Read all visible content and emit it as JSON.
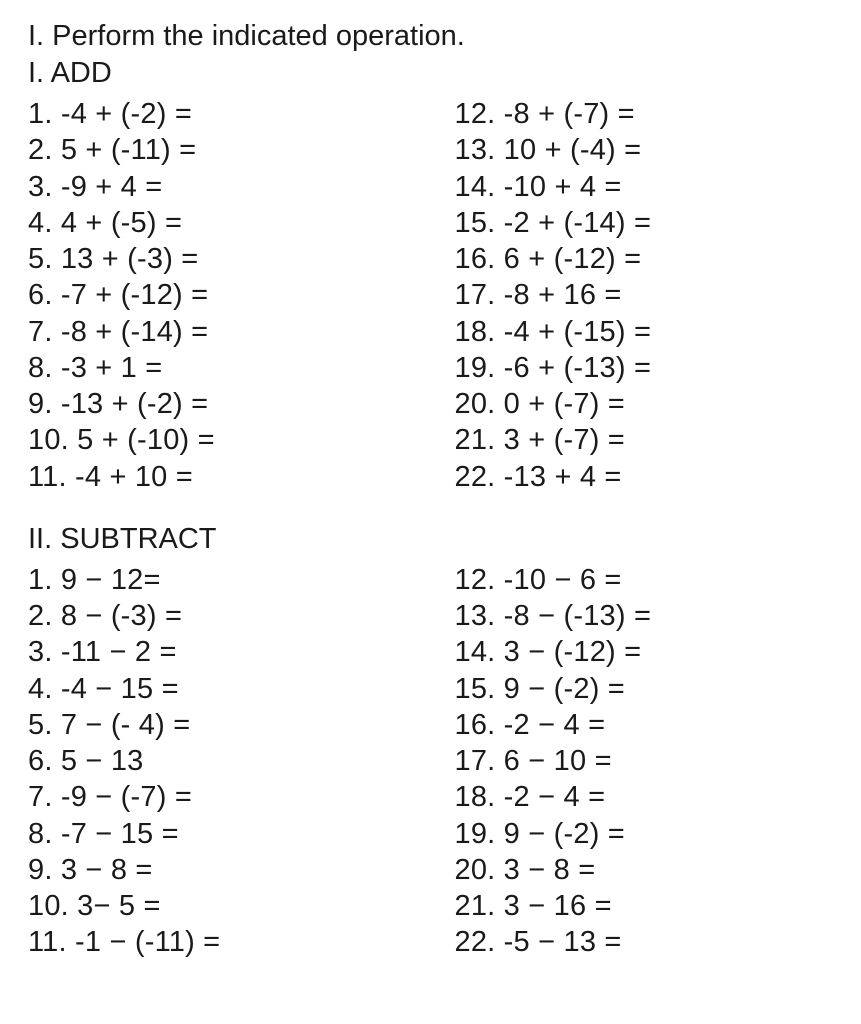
{
  "text_color": "#1a1a1a",
  "background_color": "#ffffff",
  "font_family": "Arial, Helvetica, sans-serif",
  "base_fontsize": 29,
  "title": "I. Perform the indicated operation.",
  "sections": [
    {
      "heading": "I. ADD",
      "left": [
        "1. -4 + (-2) =",
        "2. 5 + (-11) =",
        "3.  -9 + 4 =",
        "4.  4 + (-5) =",
        "5. 13 + (-3) =",
        "6. -7 + (-12) =",
        "7. -8 + (-14) =",
        "8.  -3 + 1 =",
        "9. -13 + (-2) =",
        "10. 5 + (-10) =",
        "11. -4 + 10 ="
      ],
      "right": [
        "12.  -8 + (-7) =",
        "13. 10 + (-4) =",
        "14. -10 + 4 =",
        "15. -2 + (-14) =",
        "16.  6 + (-12) =",
        "17. -8 + 16 =",
        "18. -4 + (-15) =",
        "19. -6 + (-13) =",
        "20. 0 + (-7) =",
        "21. 3 + (-7) =",
        "22. -13 + 4 ="
      ]
    },
    {
      "heading": "II. SUBTRACT",
      "left": [
        "1. 9 − 12=",
        "2. 8 − (-3) =",
        "3. -11 − 2 =",
        "4. -4 − 15 =",
        "5. 7 − (- 4) =",
        "6. 5 − 13",
        "7. -9 − (-7) =",
        "8. -7 − 15 =",
        "9. 3 − 8 =",
        "10. 3− 5 =",
        "11. -1 − (-11) ="
      ],
      "right": [
        "12. -10 − 6 =",
        "13.  -8 − (-13) =",
        "14.  3 − (-12) =",
        "15. 9 − (-2) =",
        "16.  -2 − 4 =",
        "17. 6 − 10 =",
        "18. -2 − 4 =",
        "19.  9 − (-2) =",
        "20.  3 − 8 =",
        "21.  3 − 16 =",
        "22. -5 − 13 ="
      ]
    }
  ]
}
